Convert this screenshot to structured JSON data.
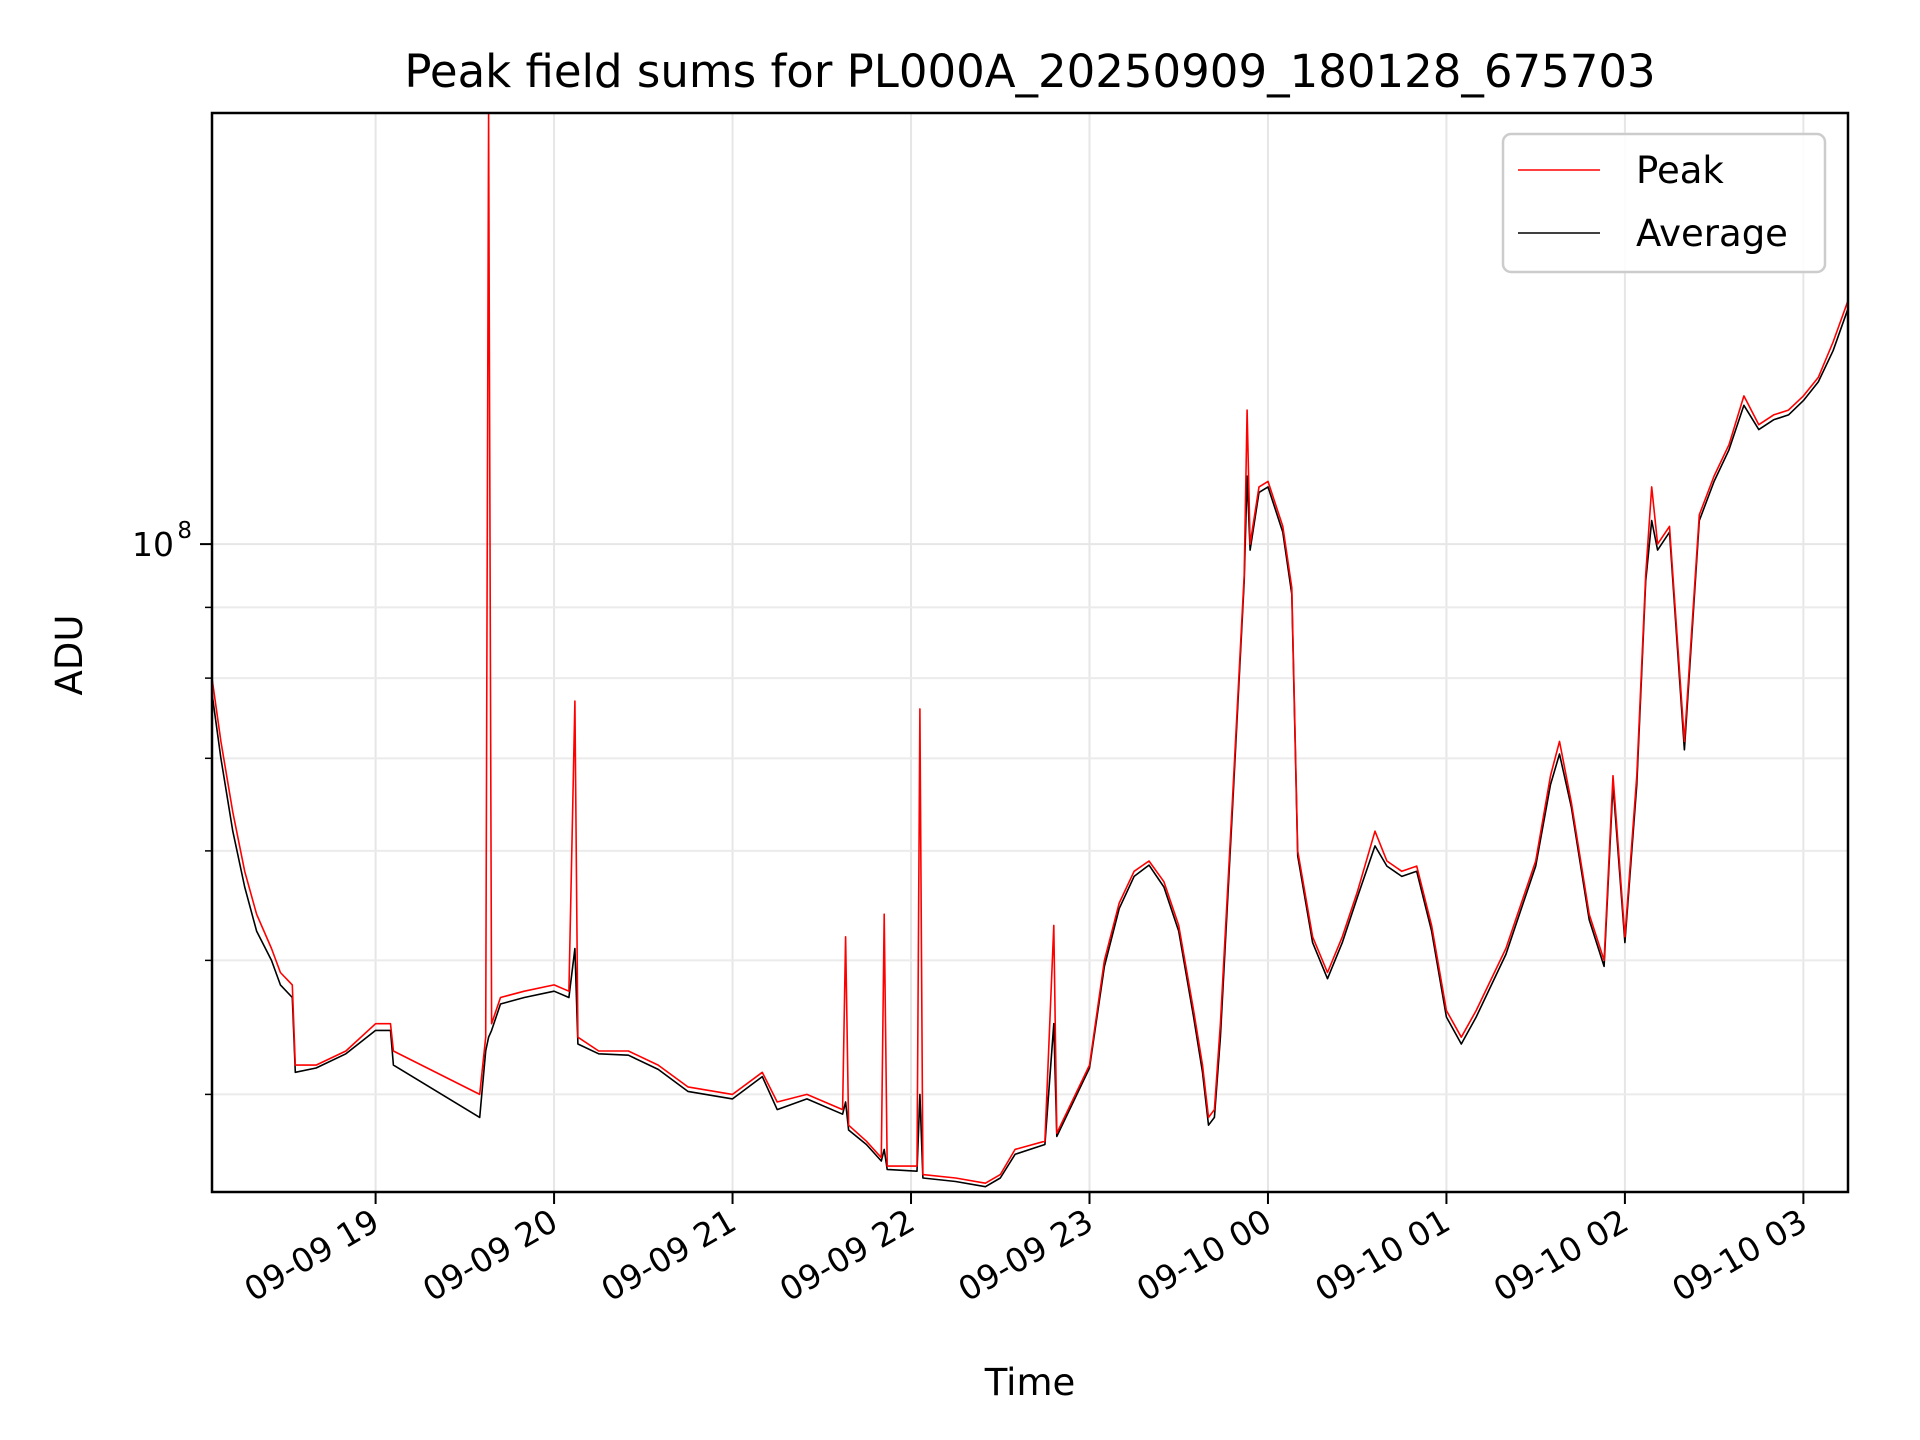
{
  "chart_data": {
    "type": "line",
    "title": "Peak field sums for PL000A_20250909_180128_675703",
    "xlabel": "Time",
    "ylabel": "ADU",
    "y_scale": "log",
    "ylim": [
      34000000,
      205000000
    ],
    "xlim": [
      "2025-09-09 18:05",
      "2025-09-10 03:15"
    ],
    "grid": true,
    "legend_position": "top-right",
    "x_ticks": [
      {
        "t": "2025-09-09 19:00",
        "label": "09-09 19"
      },
      {
        "t": "2025-09-09 20:00",
        "label": "09-09 20"
      },
      {
        "t": "2025-09-09 21:00",
        "label": "09-09 21"
      },
      {
        "t": "2025-09-09 22:00",
        "label": "09-09 22"
      },
      {
        "t": "2025-09-09 23:00",
        "label": "09-09 23"
      },
      {
        "t": "2025-09-10 00:00",
        "label": "09-10 00"
      },
      {
        "t": "2025-09-10 01:00",
        "label": "09-10 01"
      },
      {
        "t": "2025-09-10 02:00",
        "label": "09-10 02"
      },
      {
        "t": "2025-09-10 03:00",
        "label": "09-10 03"
      }
    ],
    "y_major_ticks": [
      {
        "value": 100000000,
        "label": "10",
        "exp": "8"
      }
    ],
    "y_minor_ticks": [
      40000000,
      50000000,
      60000000,
      70000000,
      80000000,
      90000000
    ],
    "series": [
      {
        "name": "Peak",
        "color": "#ff0000",
        "points": [
          [
            "2025-09-09 18:05",
            80000000
          ],
          [
            "2025-09-09 18:08",
            72000000
          ],
          [
            "2025-09-09 18:12",
            64000000
          ],
          [
            "2025-09-09 18:16",
            58000000
          ],
          [
            "2025-09-09 18:20",
            54000000
          ],
          [
            "2025-09-09 18:25",
            51000000
          ],
          [
            "2025-09-09 18:28",
            49000000
          ],
          [
            "2025-09-09 18:32",
            48000000
          ],
          [
            "2025-09-09 18:33",
            42000000
          ],
          [
            "2025-09-09 18:40",
            42000000
          ],
          [
            "2025-09-09 18:50",
            43000000
          ],
          [
            "2025-09-09 19:00",
            45000000
          ],
          [
            "2025-09-09 19:05",
            45000000
          ],
          [
            "2025-09-09 19:06",
            43000000
          ],
          [
            "2025-09-09 19:35",
            40000000
          ],
          [
            "2025-09-09 19:37",
            44000000
          ],
          [
            "2025-09-09 19:38",
            205000000
          ],
          [
            "2025-09-09 19:39",
            45000000
          ],
          [
            "2025-09-09 19:42",
            47000000
          ],
          [
            "2025-09-09 19:50",
            47500000
          ],
          [
            "2025-09-09 20:00",
            48000000
          ],
          [
            "2025-09-09 20:05",
            47500000
          ],
          [
            "2025-09-09 20:07",
            77000000
          ],
          [
            "2025-09-09 20:08",
            44000000
          ],
          [
            "2025-09-09 20:15",
            43000000
          ],
          [
            "2025-09-09 20:25",
            43000000
          ],
          [
            "2025-09-09 20:35",
            42000000
          ],
          [
            "2025-09-09 20:45",
            40500000
          ],
          [
            "2025-09-09 21:00",
            40000000
          ],
          [
            "2025-09-09 21:10",
            41500000
          ],
          [
            "2025-09-09 21:15",
            39500000
          ],
          [
            "2025-09-09 21:25",
            40000000
          ],
          [
            "2025-09-09 21:37",
            39000000
          ],
          [
            "2025-09-09 21:38",
            52000000
          ],
          [
            "2025-09-09 21:39",
            38000000
          ],
          [
            "2025-09-09 21:45",
            37000000
          ],
          [
            "2025-09-09 21:50",
            36000000
          ],
          [
            "2025-09-09 21:51",
            54000000
          ],
          [
            "2025-09-09 21:52",
            35500000
          ],
          [
            "2025-09-09 22:02",
            35500000
          ],
          [
            "2025-09-09 22:03",
            76000000
          ],
          [
            "2025-09-09 22:04",
            35000000
          ],
          [
            "2025-09-09 22:15",
            34800000
          ],
          [
            "2025-09-09 22:25",
            34500000
          ],
          [
            "2025-09-09 22:30",
            35000000
          ],
          [
            "2025-09-09 22:35",
            36500000
          ],
          [
            "2025-09-09 22:45",
            37000000
          ],
          [
            "2025-09-09 22:48",
            53000000
          ],
          [
            "2025-09-09 22:49",
            37500000
          ],
          [
            "2025-09-09 23:00",
            42000000
          ],
          [
            "2025-09-09 23:05",
            50000000
          ],
          [
            "2025-09-09 23:10",
            55000000
          ],
          [
            "2025-09-09 23:15",
            58000000
          ],
          [
            "2025-09-09 23:20",
            59000000
          ],
          [
            "2025-09-09 23:25",
            57000000
          ],
          [
            "2025-09-09 23:30",
            53000000
          ],
          [
            "2025-09-09 23:35",
            46000000
          ],
          [
            "2025-09-09 23:38",
            42000000
          ],
          [
            "2025-09-09 23:40",
            38500000
          ],
          [
            "2025-09-09 23:42",
            39000000
          ],
          [
            "2025-09-09 23:44",
            45000000
          ],
          [
            "2025-09-09 23:48",
            65000000
          ],
          [
            "2025-09-09 23:52",
            95000000
          ],
          [
            "2025-09-09 23:53",
            125000000
          ],
          [
            "2025-09-09 23:54",
            100000000
          ],
          [
            "2025-09-09 23:57",
            110000000
          ],
          [
            "2025-09-10 00:00",
            111000000
          ],
          [
            "2025-09-10 00:05",
            103000000
          ],
          [
            "2025-09-10 00:08",
            93000000
          ],
          [
            "2025-09-10 00:10",
            60000000
          ],
          [
            "2025-09-10 00:15",
            52000000
          ],
          [
            "2025-09-10 00:20",
            49000000
          ],
          [
            "2025-09-10 00:25",
            52000000
          ],
          [
            "2025-09-10 00:30",
            56000000
          ],
          [
            "2025-09-10 00:36",
            62000000
          ],
          [
            "2025-09-10 00:40",
            59000000
          ],
          [
            "2025-09-10 00:45",
            58000000
          ],
          [
            "2025-09-10 00:50",
            58500000
          ],
          [
            "2025-09-10 00:55",
            53000000
          ],
          [
            "2025-09-10 01:00",
            46000000
          ],
          [
            "2025-09-10 01:05",
            44000000
          ],
          [
            "2025-09-10 01:10",
            46000000
          ],
          [
            "2025-09-10 01:20",
            51000000
          ],
          [
            "2025-09-10 01:30",
            59000000
          ],
          [
            "2025-09-10 01:35",
            68000000
          ],
          [
            "2025-09-10 01:38",
            72000000
          ],
          [
            "2025-09-10 01:42",
            65000000
          ],
          [
            "2025-09-10 01:48",
            54000000
          ],
          [
            "2025-09-10 01:53",
            50000000
          ],
          [
            "2025-09-10 01:56",
            68000000
          ],
          [
            "2025-09-10 02:00",
            52000000
          ],
          [
            "2025-09-10 02:04",
            68000000
          ],
          [
            "2025-09-10 02:07",
            95000000
          ],
          [
            "2025-09-10 02:09",
            110000000
          ],
          [
            "2025-09-10 02:11",
            100000000
          ],
          [
            "2025-09-10 02:15",
            103000000
          ],
          [
            "2025-09-10 02:20",
            72000000
          ],
          [
            "2025-09-10 02:25",
            105000000
          ],
          [
            "2025-09-10 02:30",
            112000000
          ],
          [
            "2025-09-10 02:35",
            118000000
          ],
          [
            "2025-09-10 02:40",
            128000000
          ],
          [
            "2025-09-10 02:45",
            122000000
          ],
          [
            "2025-09-10 02:50",
            124000000
          ],
          [
            "2025-09-10 02:55",
            125000000
          ],
          [
            "2025-09-10 03:00",
            128000000
          ],
          [
            "2025-09-10 03:05",
            132000000
          ],
          [
            "2025-09-10 03:10",
            140000000
          ],
          [
            "2025-09-10 03:15",
            150000000
          ]
        ]
      },
      {
        "name": "Average",
        "color": "#000000",
        "points": [
          [
            "2025-09-09 18:05",
            78000000
          ],
          [
            "2025-09-09 18:08",
            70000000
          ],
          [
            "2025-09-09 18:12",
            62000000
          ],
          [
            "2025-09-09 18:16",
            56500000
          ],
          [
            "2025-09-09 18:20",
            52500000
          ],
          [
            "2025-09-09 18:25",
            50000000
          ],
          [
            "2025-09-09 18:28",
            48000000
          ],
          [
            "2025-09-09 18:32",
            47000000
          ],
          [
            "2025-09-09 18:33",
            41500000
          ],
          [
            "2025-09-09 18:40",
            41800000
          ],
          [
            "2025-09-09 18:50",
            42800000
          ],
          [
            "2025-09-09 19:00",
            44500000
          ],
          [
            "2025-09-09 19:05",
            44500000
          ],
          [
            "2025-09-09 19:06",
            42000000
          ],
          [
            "2025-09-09 19:35",
            38500000
          ],
          [
            "2025-09-09 19:37",
            43000000
          ],
          [
            "2025-09-09 19:38",
            44000000
          ],
          [
            "2025-09-09 19:39",
            44500000
          ],
          [
            "2025-09-09 19:42",
            46500000
          ],
          [
            "2025-09-09 19:50",
            47000000
          ],
          [
            "2025-09-09 20:00",
            47500000
          ],
          [
            "2025-09-09 20:05",
            47000000
          ],
          [
            "2025-09-09 20:07",
            51000000
          ],
          [
            "2025-09-09 20:08",
            43500000
          ],
          [
            "2025-09-09 20:15",
            42800000
          ],
          [
            "2025-09-09 20:25",
            42700000
          ],
          [
            "2025-09-09 20:35",
            41700000
          ],
          [
            "2025-09-09 20:45",
            40200000
          ],
          [
            "2025-09-09 21:00",
            39700000
          ],
          [
            "2025-09-09 21:10",
            41200000
          ],
          [
            "2025-09-09 21:15",
            39000000
          ],
          [
            "2025-09-09 21:25",
            39700000
          ],
          [
            "2025-09-09 21:37",
            38700000
          ],
          [
            "2025-09-09 21:38",
            39500000
          ],
          [
            "2025-09-09 21:39",
            37700000
          ],
          [
            "2025-09-09 21:45",
            36800000
          ],
          [
            "2025-09-09 21:50",
            35800000
          ],
          [
            "2025-09-09 21:51",
            36500000
          ],
          [
            "2025-09-09 21:52",
            35300000
          ],
          [
            "2025-09-09 22:02",
            35200000
          ],
          [
            "2025-09-09 22:03",
            40000000
          ],
          [
            "2025-09-09 22:04",
            34800000
          ],
          [
            "2025-09-09 22:15",
            34600000
          ],
          [
            "2025-09-09 22:25",
            34300000
          ],
          [
            "2025-09-09 22:30",
            34800000
          ],
          [
            "2025-09-09 22:35",
            36200000
          ],
          [
            "2025-09-09 22:45",
            36800000
          ],
          [
            "2025-09-09 22:48",
            45000000
          ],
          [
            "2025-09-09 22:49",
            37300000
          ],
          [
            "2025-09-09 23:00",
            41800000
          ],
          [
            "2025-09-09 23:05",
            49500000
          ],
          [
            "2025-09-09 23:10",
            54500000
          ],
          [
            "2025-09-09 23:15",
            57500000
          ],
          [
            "2025-09-09 23:20",
            58600000
          ],
          [
            "2025-09-09 23:25",
            56500000
          ],
          [
            "2025-09-09 23:30",
            52500000
          ],
          [
            "2025-09-09 23:35",
            45500000
          ],
          [
            "2025-09-09 23:38",
            41500000
          ],
          [
            "2025-09-09 23:40",
            38000000
          ],
          [
            "2025-09-09 23:42",
            38500000
          ],
          [
            "2025-09-09 23:44",
            44000000
          ],
          [
            "2025-09-09 23:48",
            64000000
          ],
          [
            "2025-09-09 23:52",
            94000000
          ],
          [
            "2025-09-09 23:53",
            112000000
          ],
          [
            "2025-09-09 23:54",
            99000000
          ],
          [
            "2025-09-09 23:57",
            109000000
          ],
          [
            "2025-09-10 00:00",
            110000000
          ],
          [
            "2025-09-10 00:05",
            102000000
          ],
          [
            "2025-09-10 00:08",
            92000000
          ],
          [
            "2025-09-10 00:10",
            59500000
          ],
          [
            "2025-09-10 00:15",
            51500000
          ],
          [
            "2025-09-10 00:20",
            48500000
          ],
          [
            "2025-09-10 00:25",
            51500000
          ],
          [
            "2025-09-10 00:30",
            55500000
          ],
          [
            "2025-09-10 00:36",
            60500000
          ],
          [
            "2025-09-10 00:40",
            58500000
          ],
          [
            "2025-09-10 00:45",
            57500000
          ],
          [
            "2025-09-10 00:50",
            58000000
          ],
          [
            "2025-09-10 00:55",
            52500000
          ],
          [
            "2025-09-10 01:00",
            45500000
          ],
          [
            "2025-09-10 01:05",
            43500000
          ],
          [
            "2025-09-10 01:10",
            45500000
          ],
          [
            "2025-09-10 01:20",
            50500000
          ],
          [
            "2025-09-10 01:30",
            58500000
          ],
          [
            "2025-09-10 01:35",
            67000000
          ],
          [
            "2025-09-10 01:38",
            70500000
          ],
          [
            "2025-09-10 01:42",
            64500000
          ],
          [
            "2025-09-10 01:48",
            53500000
          ],
          [
            "2025-09-10 01:53",
            49500000
          ],
          [
            "2025-09-10 01:56",
            67000000
          ],
          [
            "2025-09-10 02:00",
            51500000
          ],
          [
            "2025-09-10 02:04",
            67000000
          ],
          [
            "2025-09-10 02:07",
            94000000
          ],
          [
            "2025-09-10 02:09",
            104000000
          ],
          [
            "2025-09-10 02:11",
            99000000
          ],
          [
            "2025-09-10 02:15",
            102000000
          ],
          [
            "2025-09-10 02:20",
            71000000
          ],
          [
            "2025-09-10 02:25",
            104000000
          ],
          [
            "2025-09-10 02:30",
            111000000
          ],
          [
            "2025-09-10 02:35",
            117000000
          ],
          [
            "2025-09-10 02:40",
            126000000
          ],
          [
            "2025-09-10 02:45",
            121000000
          ],
          [
            "2025-09-10 02:50",
            123000000
          ],
          [
            "2025-09-10 02:55",
            124000000
          ],
          [
            "2025-09-10 03:00",
            127000000
          ],
          [
            "2025-09-10 03:05",
            131000000
          ],
          [
            "2025-09-10 03:10",
            138000000
          ],
          [
            "2025-09-10 03:15",
            148000000
          ]
        ]
      }
    ]
  }
}
